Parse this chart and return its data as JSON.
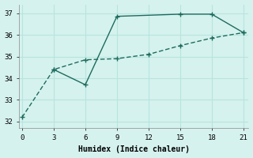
{
  "xlabel": "Humidex (Indice chaleur)",
  "background_color": "#d5f2ee",
  "grid_color": "#b8e4de",
  "line_color": "#1e6b5e",
  "line1_x": [
    0,
    3,
    6,
    9,
    12,
    15,
    18,
    21
  ],
  "line1_y": [
    32.2,
    34.4,
    34.85,
    34.9,
    35.1,
    35.5,
    35.85,
    36.1
  ],
  "line2_x": [
    3,
    6,
    9,
    15,
    18,
    21
  ],
  "line2_y": [
    34.4,
    33.7,
    36.85,
    36.95,
    36.95,
    36.1
  ],
  "xlim": [
    -0.3,
    21.5
  ],
  "ylim": [
    31.7,
    37.4
  ],
  "xticks": [
    0,
    3,
    6,
    9,
    12,
    15,
    18,
    21
  ],
  "yticks": [
    32,
    33,
    34,
    35,
    36,
    37
  ]
}
